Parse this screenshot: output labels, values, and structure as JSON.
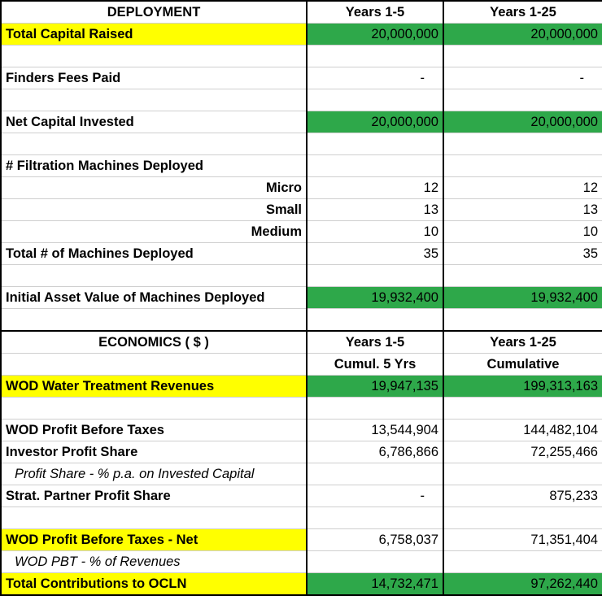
{
  "deployment": {
    "header": {
      "label": "DEPLOYMENT",
      "col1": "Years 1-5",
      "col2": "Years 1-25"
    },
    "rows": [
      {
        "label": "Total Capital Raised",
        "v1": "20,000,000",
        "v2": "20,000,000"
      },
      {
        "label": "Finders Fees Paid",
        "v1": "-",
        "v2": "-"
      },
      {
        "label": "Net Capital Invested",
        "v1": "20,000,000",
        "v2": "20,000,000"
      },
      {
        "label": "# Filtration Machines Deployed"
      },
      {
        "label": "Micro",
        "v1": "12",
        "v2": "12"
      },
      {
        "label": "Small",
        "v1": "13",
        "v2": "13"
      },
      {
        "label": "Medium",
        "v1": "10",
        "v2": "10"
      },
      {
        "label": "Total # of Machines Deployed",
        "v1": "35",
        "v2": "35"
      },
      {
        "label": "Initial Asset Value of Machines Deployed",
        "v1": "19,932,400",
        "v2": "19,932,400"
      }
    ]
  },
  "economics": {
    "header": {
      "label": "ECONOMICS ( $ )",
      "col1": "Years 1-5",
      "col1_sub": "Cumul. 5 Yrs",
      "col2": "Years 1-25",
      "col2_sub": "Cumulative"
    },
    "rows": [
      {
        "label": "WOD Water Treatment Revenues",
        "v1": "19,947,135",
        "v2": "199,313,163"
      },
      {
        "label": "WOD Profit Before Taxes",
        "v1": "13,544,904",
        "v2": "144,482,104"
      },
      {
        "label": "Investor Profit Share",
        "v1": "6,786,866",
        "v2": "72,255,466"
      },
      {
        "label": "Profit Share - % p.a. on Invested Capital"
      },
      {
        "label": "Strat. Partner Profit Share",
        "v1": "-",
        "v2": "875,233"
      },
      {
        "label": "WOD Profit Before Taxes - Net",
        "v1": "6,758,037",
        "v2": "71,351,404"
      },
      {
        "label": "WOD PBT - % of Revenues"
      },
      {
        "label": "Total Contributions to OCLN",
        "v1": "14,732,471",
        "v2": "97,262,440"
      }
    ]
  },
  "colors": {
    "highlight_yellow": "#ffff00",
    "highlight_green": "#2ea84a"
  }
}
